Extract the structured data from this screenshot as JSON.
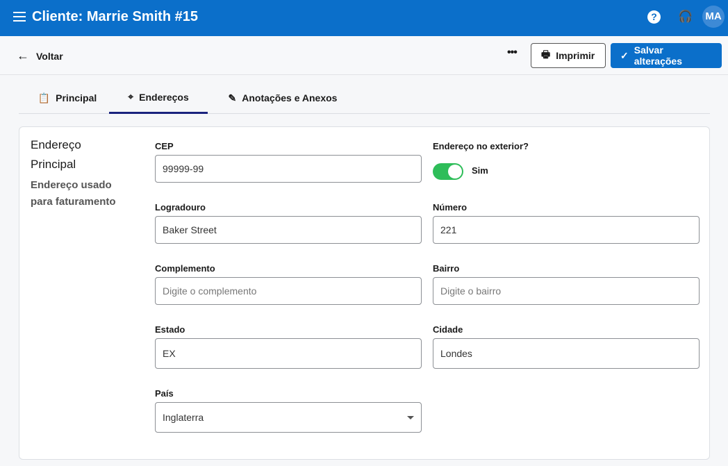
{
  "header": {
    "title": "Cliente: Marrie Smith #15",
    "avatar": "MA",
    "help_icon": "?"
  },
  "toolbar": {
    "back": "Voltar",
    "more": "•••",
    "print": "Imprimir",
    "save": "Salvar alterações"
  },
  "tabs": [
    {
      "label": "Principal",
      "icon": "clipboard-icon"
    },
    {
      "label": "Endereços",
      "icon": "map-pin-icon",
      "active": true
    },
    {
      "label": "Anotações e Anexos",
      "icon": "edit-note-icon"
    }
  ],
  "section": {
    "title": "Endereço Principal",
    "subtitle": "Endereço usado para faturamento"
  },
  "form": {
    "cep": {
      "label": "CEP",
      "value": "99999-99"
    },
    "exterior": {
      "label": "Endereço no exterior?",
      "value": "Sim",
      "on": true,
      "color": "#2ebd59"
    },
    "logradouro": {
      "label": "Logradouro",
      "value": "Baker Street"
    },
    "numero": {
      "label": "Número",
      "value": "221"
    },
    "complemento": {
      "label": "Complemento",
      "placeholder": "Digite o complemento"
    },
    "bairro": {
      "label": "Bairro",
      "placeholder": "Digite o bairro"
    },
    "estado": {
      "label": "Estado",
      "value": "EX"
    },
    "cidade": {
      "label": "Cidade",
      "value": "Londes"
    },
    "pais": {
      "label": "País",
      "value": "Inglaterra"
    }
  }
}
